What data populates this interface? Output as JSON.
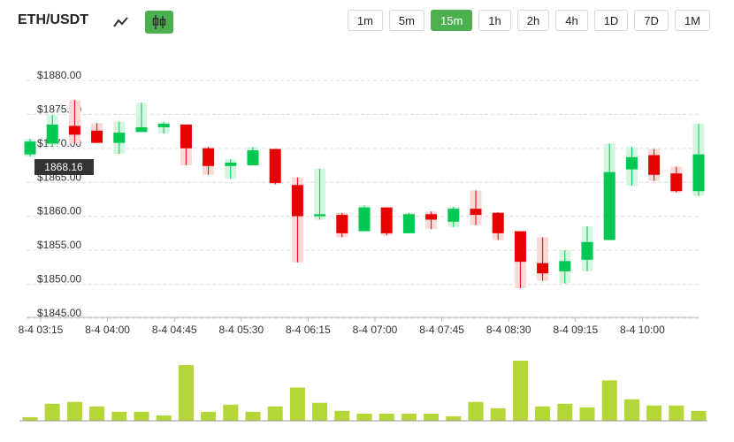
{
  "header": {
    "pair": "ETH/USDT",
    "line_icon": "line-chart-icon",
    "candle_icon": "candlestick-icon",
    "intervals": [
      "1m",
      "5m",
      "15m",
      "1h",
      "2h",
      "4h",
      "1D",
      "7D",
      "1M"
    ],
    "active_interval": "15m"
  },
  "colors": {
    "up": "#00c853",
    "down": "#e60000",
    "up_wick_bg": "#d6f5e0",
    "down_wick_bg": "#fbd9d9",
    "volume": "#b4d637",
    "grid": "#dddddd",
    "active_button": "#4caf50"
  },
  "chart_data": {
    "type": "candlestick",
    "y_ticks": [
      "$1880.00",
      "$1875.00",
      "$1870.00",
      "$1865.00",
      "$1860.00",
      "$1855.00",
      "$1850.00",
      "$1845.00"
    ],
    "y_tick_values": [
      1880,
      1875,
      1870,
      1865,
      1860,
      1855,
      1850,
      1845
    ],
    "x_ticks": [
      "8-4 03:15",
      "8-4 04:00",
      "8-4 04:45",
      "8-4 05:30",
      "8-4 06:15",
      "8-4 07:00",
      "8-4 07:45",
      "8-4 08:30",
      "8-4 09:15",
      "8-4 10:00"
    ],
    "x_tick_candle_index": [
      0,
      3,
      6,
      9,
      12,
      15,
      18,
      21,
      24,
      27
    ],
    "current_price": "1868.16",
    "candles": [
      {
        "o": 1868.2,
        "h": 1870.5,
        "l": 1867.9,
        "c": 1870.1
      },
      {
        "o": 1869.8,
        "h": 1874.0,
        "l": 1869.4,
        "c": 1872.6
      },
      {
        "o": 1872.4,
        "h": 1876.2,
        "l": 1869.8,
        "c": 1871.1
      },
      {
        "o": 1871.7,
        "h": 1872.8,
        "l": 1869.9,
        "c": 1869.9
      },
      {
        "o": 1869.9,
        "h": 1873.0,
        "l": 1868.3,
        "c": 1871.4
      },
      {
        "o": 1871.5,
        "h": 1875.8,
        "l": 1871.5,
        "c": 1872.2
      },
      {
        "o": 1872.2,
        "h": 1873.0,
        "l": 1871.3,
        "c": 1872.7
      },
      {
        "o": 1872.6,
        "h": 1872.6,
        "l": 1866.6,
        "c": 1869.1
      },
      {
        "o": 1869.1,
        "h": 1869.3,
        "l": 1865.2,
        "c": 1866.5
      },
      {
        "o": 1866.5,
        "h": 1867.5,
        "l": 1864.6,
        "c": 1867.0
      },
      {
        "o": 1866.6,
        "h": 1869.3,
        "l": 1866.6,
        "c": 1868.8
      },
      {
        "o": 1869.0,
        "h": 1869.0,
        "l": 1863.8,
        "c": 1864.0
      },
      {
        "o": 1863.7,
        "h": 1864.8,
        "l": 1852.3,
        "c": 1859.1
      },
      {
        "o": 1859.1,
        "h": 1866.1,
        "l": 1858.6,
        "c": 1859.4
      },
      {
        "o": 1859.3,
        "h": 1859.6,
        "l": 1856.0,
        "c": 1856.6
      },
      {
        "o": 1856.9,
        "h": 1860.7,
        "l": 1856.9,
        "c": 1860.4
      },
      {
        "o": 1860.4,
        "h": 1860.4,
        "l": 1856.3,
        "c": 1856.6
      },
      {
        "o": 1856.6,
        "h": 1859.6,
        "l": 1856.6,
        "c": 1859.4
      },
      {
        "o": 1859.4,
        "h": 1859.8,
        "l": 1857.2,
        "c": 1858.6
      },
      {
        "o": 1858.3,
        "h": 1860.5,
        "l": 1857.5,
        "c": 1860.2
      },
      {
        "o": 1860.2,
        "h": 1862.9,
        "l": 1857.8,
        "c": 1859.3
      },
      {
        "o": 1859.6,
        "h": 1859.7,
        "l": 1855.6,
        "c": 1856.6
      },
      {
        "o": 1856.9,
        "h": 1856.9,
        "l": 1848.5,
        "c": 1852.4
      },
      {
        "o": 1852.2,
        "h": 1856.0,
        "l": 1849.6,
        "c": 1850.7
      },
      {
        "o": 1851.0,
        "h": 1854.1,
        "l": 1849.2,
        "c": 1852.5
      },
      {
        "o": 1852.7,
        "h": 1857.6,
        "l": 1851.0,
        "c": 1855.3
      },
      {
        "o": 1855.6,
        "h": 1869.8,
        "l": 1855.6,
        "c": 1865.6
      },
      {
        "o": 1866.0,
        "h": 1869.3,
        "l": 1863.6,
        "c": 1867.8
      },
      {
        "o": 1868.1,
        "h": 1869.0,
        "l": 1864.3,
        "c": 1865.2
      },
      {
        "o": 1865.4,
        "h": 1866.4,
        "l": 1862.6,
        "c": 1862.8
      },
      {
        "o": 1862.8,
        "h": 1872.7,
        "l": 1862.1,
        "c": 1868.2
      }
    ],
    "volumes": [
      4,
      19,
      21,
      16,
      10,
      10,
      6,
      62,
      10,
      18,
      10,
      16,
      37,
      20,
      11,
      8,
      8,
      8,
      8,
      5,
      21,
      14,
      67,
      16,
      19,
      15,
      45,
      24,
      17,
      17,
      11
    ]
  }
}
